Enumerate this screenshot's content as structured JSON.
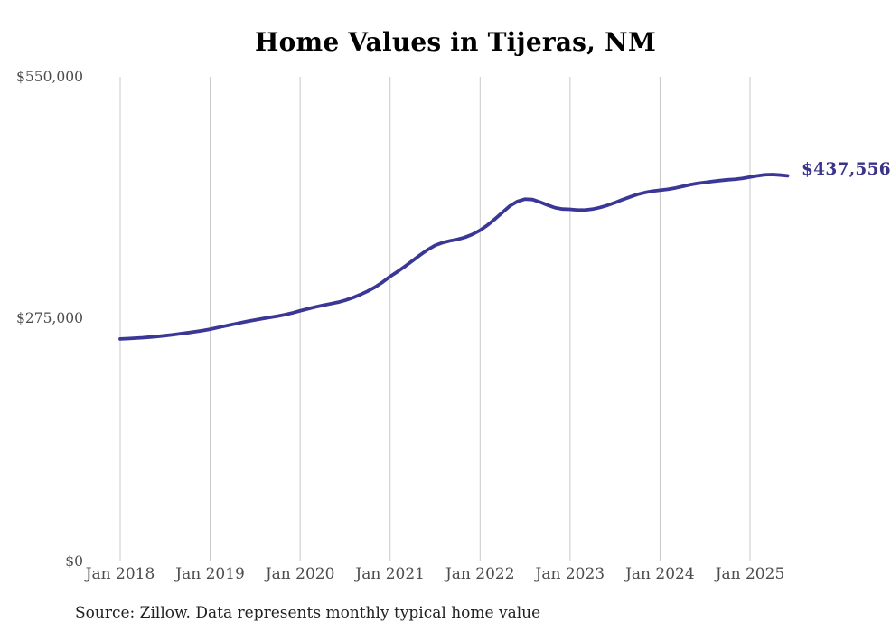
{
  "page": {
    "background": "#ffffff"
  },
  "colors": {
    "line": "#3a3796",
    "end_label": "#39338a",
    "grid": "#c9c9c9",
    "title": "#000000",
    "tick": "#4c4c4c",
    "source": "#1f1f1f"
  },
  "source_note": "Source: Zillow. Data represents monthly typical home value",
  "chart_data": {
    "type": "line",
    "title": "Home Values in Tijeras, NM",
    "xlabel": "",
    "ylabel": "",
    "legend": "none",
    "grid": "vertical-only",
    "ylim": [
      0,
      550000
    ],
    "y_ticks": [
      {
        "label": "$0",
        "value": 0
      },
      {
        "label": "$275,000",
        "value": 275000
      },
      {
        "label": "$550,000",
        "value": 550000
      }
    ],
    "x_tick_labels": [
      "Jan 2018",
      "Jan 2019",
      "Jan 2020",
      "Jan 2021",
      "Jan 2022",
      "Jan 2023",
      "Jan 2024",
      "Jan 2025"
    ],
    "end_value_label": "$437,556",
    "series": [
      {
        "name": "Monthly typical home value",
        "x_start": "Jan 2018",
        "x_end": "Jun 2025",
        "frequency": "monthly",
        "values": [
          252000,
          252400,
          252900,
          253400,
          254100,
          254900,
          255800,
          256800,
          257900,
          259000,
          260200,
          261500,
          263100,
          264900,
          266700,
          268500,
          270300,
          272000,
          273600,
          275100,
          276500,
          278000,
          279600,
          281600,
          284000,
          286200,
          288300,
          290200,
          291900,
          293600,
          295900,
          298800,
          302300,
          306300,
          310900,
          316600,
          323000,
          328600,
          334600,
          341000,
          347400,
          353400,
          358400,
          361500,
          363600,
          365200,
          367600,
          371000,
          375500,
          381500,
          388500,
          396000,
          403400,
          408500,
          411000,
          410500,
          407600,
          404200,
          401200,
          399700,
          399400,
          398600,
          398600,
          399600,
          401500,
          404000,
          407000,
          410400,
          413500,
          416400,
          418500,
          420100,
          421100,
          422100,
          423600,
          425500,
          427400,
          428900,
          430000,
          431100,
          432100,
          433000,
          433600,
          434600,
          436100,
          437600,
          438700,
          439000,
          438400,
          437556
        ]
      }
    ]
  }
}
